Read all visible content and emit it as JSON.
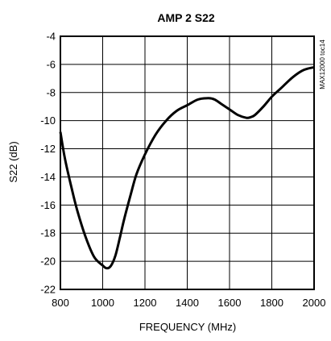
{
  "chart_data": {
    "type": "line",
    "title": "AMP 2 S22",
    "xlabel": "FREQUENCY (MHz)",
    "ylabel": "S22 (dB)",
    "watermark": "MAX12000 toc14",
    "xlim": [
      800,
      2000
    ],
    "ylim": [
      -22,
      -4
    ],
    "xticks": [
      800,
      1000,
      1200,
      1400,
      1600,
      1800,
      2000
    ],
    "yticks": [
      -4,
      -6,
      -8,
      -10,
      -12,
      -14,
      -16,
      -18,
      -20,
      -22
    ],
    "grid": true,
    "line_color": "#000000",
    "series": [
      {
        "x": [
          800,
          820,
          850,
          880,
          920,
          960,
          1000,
          1020,
          1040,
          1060,
          1080,
          1100,
          1130,
          1160,
          1200,
          1250,
          1300,
          1350,
          1400,
          1450,
          1500,
          1530,
          1560,
          1600,
          1640,
          1680,
          1700,
          1720,
          1760,
          1800,
          1850,
          1900,
          1950,
          2000
        ],
        "y": [
          -10.8,
          -12.6,
          -14.6,
          -16.4,
          -18.3,
          -19.7,
          -20.3,
          -20.5,
          -20.3,
          -19.6,
          -18.4,
          -17.1,
          -15.4,
          -13.8,
          -12.4,
          -11.0,
          -10.0,
          -9.3,
          -8.9,
          -8.5,
          -8.4,
          -8.5,
          -8.8,
          -9.2,
          -9.6,
          -9.8,
          -9.75,
          -9.6,
          -9.0,
          -8.3,
          -7.6,
          -6.9,
          -6.4,
          -6.2
        ]
      }
    ]
  }
}
